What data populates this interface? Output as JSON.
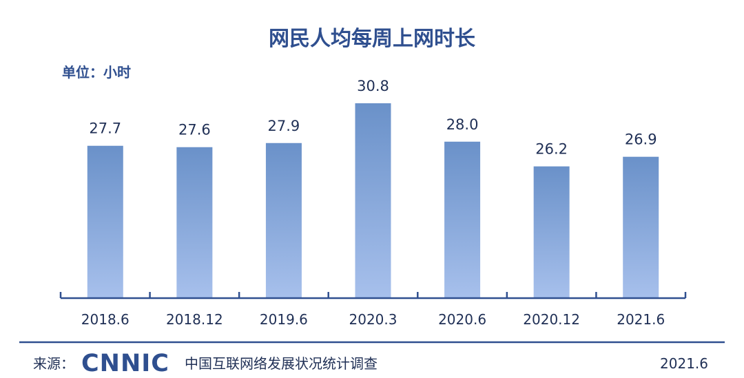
{
  "colors": {
    "title": "#2f4f8f",
    "text": "#1f2f55",
    "axis": "#2f4f8f",
    "bar_top": "#6a91c9",
    "bar_bottom": "#a7c0ec",
    "footer_line": "#2f4f8f"
  },
  "chart_data": {
    "type": "bar",
    "title": "网民人均每周上网时长",
    "unit": "单位：小时",
    "categories": [
      "2018.6",
      "2018.12",
      "2019.6",
      "2020.3",
      "2020.6",
      "2020.12",
      "2021.6"
    ],
    "values": [
      27.7,
      27.6,
      27.9,
      30.8,
      28.0,
      26.2,
      26.9
    ],
    "value_labels": [
      "27.7",
      "27.6",
      "27.9",
      "30.8",
      "28.0",
      "26.2",
      "26.9"
    ],
    "ylim": [
      16.6,
      31.5
    ],
    "grid": false,
    "legend": "none"
  },
  "footer": {
    "source_label": "来源：",
    "logo": "CNNIC",
    "survey_name": "中国互联网络发展状况统计调查",
    "date": "2021.6"
  }
}
